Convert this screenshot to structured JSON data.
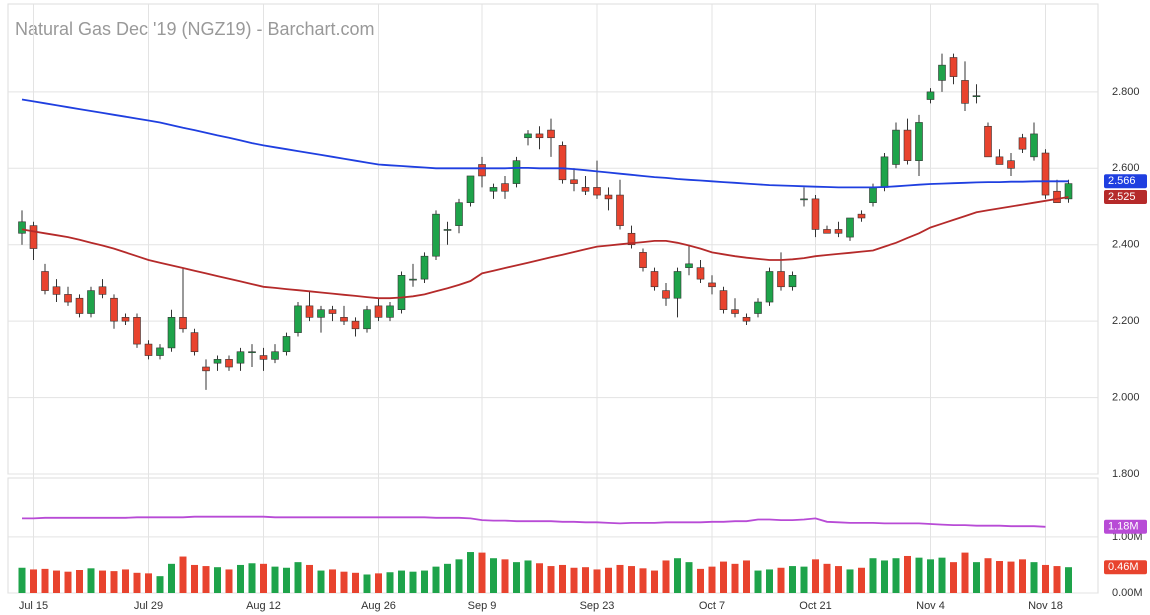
{
  "chart_data": [
    {
      "type": "candlestick",
      "title": "Natural Gas Dec '19 (NGZ19) - Barchart.com",
      "categories": [
        null,
        "Jul 15",
        null,
        null,
        null,
        null,
        null,
        null,
        null,
        null,
        null,
        "Jul 29",
        null,
        null,
        null,
        null,
        null,
        null,
        null,
        null,
        null,
        "Aug 12",
        null,
        null,
        null,
        null,
        null,
        null,
        null,
        null,
        null,
        "Aug 26",
        null,
        null,
        null,
        null,
        null,
        null,
        null,
        null,
        "Sep 9",
        null,
        null,
        null,
        null,
        null,
        null,
        null,
        null,
        null,
        "Sep 23",
        null,
        null,
        null,
        null,
        null,
        null,
        null,
        null,
        null,
        "Oct 7",
        null,
        null,
        null,
        null,
        null,
        null,
        null,
        null,
        "Oct 21",
        null,
        null,
        null,
        null,
        null,
        null,
        null,
        null,
        null,
        "Nov 4",
        null,
        null,
        null,
        null,
        null,
        null,
        null,
        null,
        null,
        "Nov 18",
        null,
        null
      ],
      "open": [
        2.43,
        2.45,
        2.33,
        2.29,
        2.27,
        2.26,
        2.22,
        2.29,
        2.26,
        2.21,
        2.21,
        2.14,
        2.11,
        2.13,
        2.21,
        2.17,
        2.08,
        2.09,
        2.1,
        2.09,
        2.12,
        2.11,
        2.1,
        2.12,
        2.17,
        2.24,
        2.21,
        2.23,
        2.21,
        2.2,
        2.18,
        2.24,
        2.21,
        2.23,
        2.31,
        2.31,
        2.37,
        2.44,
        2.45,
        2.51,
        2.61,
        2.54,
        2.56,
        2.56,
        2.68,
        2.69,
        2.7,
        2.66,
        2.57,
        2.55,
        2.55,
        2.53,
        2.53,
        2.43,
        2.38,
        2.33,
        2.28,
        2.26,
        2.34,
        2.34,
        2.3,
        2.28,
        2.23,
        2.21,
        2.22,
        2.25,
        2.33,
        2.29,
        2.52,
        2.52,
        2.44,
        2.44,
        2.42,
        2.48,
        2.51,
        2.55,
        2.61,
        2.7,
        2.62,
        2.78,
        2.83,
        2.89,
        2.83,
        2.79,
        2.71,
        2.63,
        2.62,
        2.68,
        2.63,
        2.64,
        2.54,
        2.52
      ],
      "high": [
        2.49,
        2.46,
        2.35,
        2.31,
        2.29,
        2.27,
        2.29,
        2.31,
        2.27,
        2.22,
        2.22,
        2.15,
        2.14,
        2.23,
        2.34,
        2.18,
        2.1,
        2.11,
        2.11,
        2.13,
        2.14,
        2.13,
        2.14,
        2.17,
        2.25,
        2.28,
        2.24,
        2.24,
        2.24,
        2.21,
        2.24,
        2.26,
        2.25,
        2.33,
        2.35,
        2.38,
        2.49,
        2.46,
        2.52,
        2.58,
        2.63,
        2.56,
        2.58,
        2.63,
        2.7,
        2.71,
        2.73,
        2.67,
        2.6,
        2.58,
        2.62,
        2.55,
        2.57,
        2.45,
        2.39,
        2.34,
        2.3,
        2.34,
        2.4,
        2.36,
        2.32,
        2.29,
        2.26,
        2.22,
        2.26,
        2.34,
        2.38,
        2.33,
        2.55,
        2.53,
        2.45,
        2.46,
        2.47,
        2.49,
        2.56,
        2.64,
        2.72,
        2.73,
        2.74,
        2.81,
        2.9,
        2.9,
        2.88,
        2.82,
        2.72,
        2.65,
        2.64,
        2.69,
        2.72,
        2.65,
        2.57,
        2.57
      ],
      "low": [
        2.4,
        2.36,
        2.27,
        2.25,
        2.24,
        2.21,
        2.21,
        2.26,
        2.18,
        2.19,
        2.13,
        2.1,
        2.1,
        2.12,
        2.17,
        2.11,
        2.02,
        2.07,
        2.07,
        2.07,
        2.08,
        2.07,
        2.09,
        2.11,
        2.16,
        2.2,
        2.17,
        2.2,
        2.19,
        2.16,
        2.17,
        2.2,
        2.2,
        2.22,
        2.29,
        2.3,
        2.36,
        2.4,
        2.43,
        2.5,
        2.55,
        2.52,
        2.52,
        2.55,
        2.66,
        2.65,
        2.63,
        2.56,
        2.54,
        2.53,
        2.52,
        2.49,
        2.44,
        2.39,
        2.33,
        2.28,
        2.24,
        2.21,
        2.32,
        2.3,
        2.27,
        2.22,
        2.21,
        2.19,
        2.21,
        2.24,
        2.28,
        2.28,
        2.5,
        2.42,
        2.43,
        2.42,
        2.41,
        2.46,
        2.5,
        2.54,
        2.6,
        2.61,
        2.58,
        2.77,
        2.8,
        2.82,
        2.75,
        2.77,
        2.63,
        2.61,
        2.58,
        2.64,
        2.62,
        2.52,
        2.51,
        2.51
      ],
      "close": [
        2.46,
        2.39,
        2.28,
        2.27,
        2.25,
        2.22,
        2.28,
        2.27,
        2.2,
        2.2,
        2.14,
        2.11,
        2.13,
        2.21,
        2.18,
        2.12,
        2.07,
        2.1,
        2.08,
        2.12,
        2.12,
        2.1,
        2.12,
        2.16,
        2.24,
        2.21,
        2.23,
        2.22,
        2.2,
        2.18,
        2.23,
        2.21,
        2.24,
        2.32,
        2.31,
        2.37,
        2.48,
        2.44,
        2.51,
        2.58,
        2.58,
        2.55,
        2.54,
        2.62,
        2.69,
        2.68,
        2.68,
        2.57,
        2.56,
        2.54,
        2.53,
        2.52,
        2.45,
        2.4,
        2.34,
        2.29,
        2.26,
        2.33,
        2.35,
        2.31,
        2.29,
        2.23,
        2.22,
        2.2,
        2.25,
        2.33,
        2.29,
        2.32,
        2.52,
        2.44,
        2.43,
        2.43,
        2.47,
        2.47,
        2.55,
        2.63,
        2.7,
        2.62,
        2.72,
        2.8,
        2.87,
        2.84,
        2.77,
        2.79,
        2.63,
        2.61,
        2.6,
        2.65,
        2.69,
        2.53,
        2.51,
        2.56
      ],
      "up_color": "#1ea34a",
      "down_color": "#e8432e",
      "lines": [
        {
          "color": "#1f3fe0",
          "values": [
            2.78,
            2.775,
            2.77,
            2.765,
            2.76,
            2.755,
            2.75,
            2.745,
            2.74,
            2.735,
            2.73,
            2.725,
            2.72,
            2.713,
            2.706,
            2.7,
            2.693,
            2.686,
            2.68,
            2.673,
            2.666,
            2.66,
            2.655,
            2.65,
            2.645,
            2.64,
            2.635,
            2.63,
            2.625,
            2.62,
            2.615,
            2.61,
            2.608,
            2.606,
            2.604,
            2.602,
            2.6,
            2.6,
            2.6,
            2.6,
            2.6,
            2.6,
            2.6,
            2.601,
            2.601,
            2.6,
            2.6,
            2.6,
            2.598,
            2.595,
            2.592,
            2.589,
            2.586,
            2.583,
            2.58,
            2.577,
            2.575,
            2.572,
            2.57,
            2.568,
            2.566,
            2.564,
            2.562,
            2.56,
            2.558,
            2.556,
            2.555,
            2.554,
            2.553,
            2.552,
            2.551,
            2.55,
            2.55,
            2.55,
            2.55,
            2.551,
            2.553,
            2.555,
            2.557,
            2.559,
            2.56,
            2.561,
            2.562,
            2.563,
            2.564,
            2.564,
            2.565,
            2.565,
            2.566,
            2.566,
            2.566,
            2.566
          ]
        },
        {
          "color": "#b52a2a",
          "values": [
            2.44,
            2.435,
            2.43,
            2.425,
            2.42,
            2.413,
            2.405,
            2.398,
            2.39,
            2.38,
            2.37,
            2.36,
            2.353,
            2.346,
            2.339,
            2.332,
            2.325,
            2.318,
            2.311,
            2.304,
            2.297,
            2.29,
            2.287,
            2.284,
            2.281,
            2.278,
            2.275,
            2.272,
            2.269,
            2.266,
            2.263,
            2.26,
            2.26,
            2.262,
            2.265,
            2.27,
            2.278,
            2.286,
            2.295,
            2.305,
            2.325,
            2.332,
            2.339,
            2.346,
            2.353,
            2.36,
            2.367,
            2.374,
            2.381,
            2.388,
            2.395,
            2.398,
            2.401,
            2.404,
            2.407,
            2.41,
            2.41,
            2.405,
            2.398,
            2.39,
            2.38,
            2.375,
            2.37,
            2.366,
            2.363,
            2.36,
            2.36,
            2.362,
            2.365,
            2.37,
            2.373,
            2.376,
            2.379,
            2.382,
            2.385,
            2.395,
            2.405,
            2.418,
            2.43,
            2.445,
            2.455,
            2.465,
            2.475,
            2.485,
            2.49,
            2.495,
            2.5,
            2.505,
            2.51,
            2.515,
            2.52,
            2.525
          ]
        }
      ],
      "ylim": [
        1.8,
        3.03
      ],
      "yticks": [
        {
          "value": 1.8,
          "label": "1.800"
        },
        {
          "value": 2.0,
          "label": "2.000"
        },
        {
          "value": 2.2,
          "label": "2.200"
        },
        {
          "value": 2.4,
          "label": "2.400"
        },
        {
          "value": 2.6,
          "label": "2.600"
        },
        {
          "value": 2.8,
          "label": "2.800"
        }
      ],
      "grid": true
    },
    {
      "type": "bar",
      "values": [
        0.45,
        0.42,
        0.43,
        0.4,
        0.38,
        0.41,
        0.44,
        0.4,
        0.39,
        0.42,
        0.36,
        0.35,
        0.3,
        0.52,
        0.65,
        0.5,
        0.48,
        0.46,
        0.42,
        0.5,
        0.53,
        0.52,
        0.47,
        0.45,
        0.55,
        0.5,
        0.4,
        0.42,
        0.38,
        0.36,
        0.33,
        0.35,
        0.37,
        0.4,
        0.38,
        0.4,
        0.47,
        0.52,
        0.6,
        0.73,
        0.72,
        0.62,
        0.6,
        0.55,
        0.58,
        0.53,
        0.48,
        0.5,
        0.45,
        0.46,
        0.42,
        0.45,
        0.5,
        0.48,
        0.44,
        0.4,
        0.58,
        0.62,
        0.55,
        0.43,
        0.47,
        0.56,
        0.52,
        0.58,
        0.4,
        0.42,
        0.45,
        0.48,
        0.47,
        0.6,
        0.52,
        0.48,
        0.42,
        0.45,
        0.62,
        0.58,
        0.62,
        0.66,
        0.63,
        0.6,
        0.63,
        0.55,
        0.72,
        0.55,
        0.62,
        0.57,
        0.56,
        0.6,
        0.55,
        0.5,
        0.48,
        0.46
      ],
      "value_labels": [
        null,
        null,
        null,
        null,
        null,
        null,
        null,
        null,
        null,
        null,
        null,
        null,
        null,
        null,
        null,
        null,
        null,
        null,
        null,
        null,
        null,
        null,
        null,
        null,
        null,
        null,
        null,
        null,
        null,
        null,
        null,
        null,
        null,
        null,
        null,
        null,
        null,
        null,
        null,
        null,
        null,
        null,
        null,
        null,
        null,
        null,
        null,
        null,
        null,
        null,
        null,
        null,
        null,
        null,
        null,
        null,
        null,
        null,
        null,
        null,
        null,
        null,
        null,
        null,
        null,
        null,
        null,
        null,
        null,
        null,
        null,
        null,
        null,
        null,
        null,
        null,
        null,
        null,
        null,
        null,
        null,
        null,
        null,
        null,
        null,
        null,
        null,
        null,
        null,
        null,
        null,
        "0.46M"
      ],
      "label_color": "#e8432e",
      "lines": [
        {
          "color": "#b84bd6",
          "values": [
            1.33,
            1.33,
            1.34,
            1.34,
            1.34,
            1.34,
            1.34,
            1.34,
            1.34,
            1.34,
            1.35,
            1.35,
            1.35,
            1.35,
            1.35,
            1.36,
            1.36,
            1.36,
            1.36,
            1.36,
            1.36,
            1.36,
            1.35,
            1.35,
            1.35,
            1.35,
            1.35,
            1.35,
            1.35,
            1.35,
            1.35,
            1.35,
            1.35,
            1.35,
            1.35,
            1.35,
            1.34,
            1.34,
            1.34,
            1.33,
            1.3,
            1.29,
            1.29,
            1.28,
            1.28,
            1.28,
            1.28,
            1.27,
            1.27,
            1.26,
            1.26,
            1.25,
            1.24,
            1.25,
            1.25,
            1.25,
            1.26,
            1.26,
            1.26,
            1.26,
            1.27,
            1.27,
            1.28,
            1.28,
            1.31,
            1.31,
            1.3,
            1.3,
            1.31,
            1.33,
            1.27,
            1.26,
            1.25,
            1.25,
            1.25,
            1.24,
            1.24,
            1.24,
            1.24,
            1.23,
            1.22,
            1.21,
            1.21,
            1.2,
            1.2,
            1.2,
            1.19,
            1.19,
            1.19,
            1.18,
            null,
            null
          ],
          "value_labels": [
            null,
            null,
            null,
            null,
            null,
            null,
            null,
            null,
            null,
            null,
            null,
            null,
            null,
            null,
            null,
            null,
            null,
            null,
            null,
            null,
            null,
            null,
            null,
            null,
            null,
            null,
            null,
            null,
            null,
            null,
            null,
            null,
            null,
            null,
            null,
            null,
            null,
            null,
            null,
            null,
            null,
            null,
            null,
            null,
            null,
            null,
            null,
            null,
            null,
            null,
            null,
            null,
            null,
            null,
            null,
            null,
            null,
            null,
            null,
            null,
            null,
            null,
            null,
            null,
            null,
            null,
            null,
            null,
            null,
            null,
            null,
            null,
            null,
            null,
            null,
            null,
            null,
            null,
            null,
            null,
            null,
            null,
            null,
            null,
            null,
            null,
            null,
            null,
            null,
            "1.18M",
            null,
            null
          ]
        }
      ],
      "ylim": [
        0,
        2.05
      ],
      "yticks": [
        {
          "value": 0,
          "label": "0.00M"
        },
        {
          "value": 1,
          "label": "1.00M"
        }
      ],
      "grid": true
    }
  ]
}
